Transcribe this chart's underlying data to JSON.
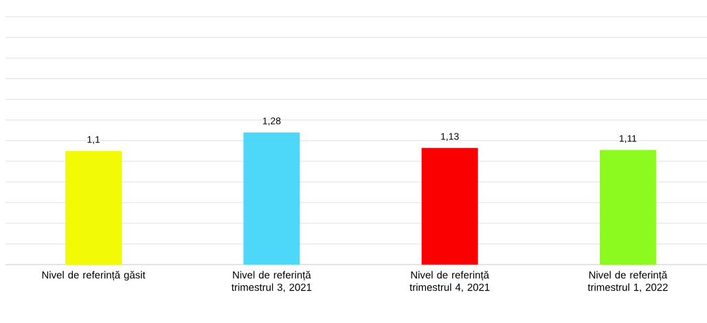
{
  "chart_data": {
    "type": "bar",
    "categories": [
      "Nivel de referință găsit",
      "Nivel de referință trimestrul 3, 2021",
      "Nivel de referință trimestrul 4, 2021",
      "Nivel de referință trimestrul 1, 2022"
    ],
    "values": [
      1.1,
      1.28,
      1.13,
      1.11
    ],
    "colors": [
      "#f2fa05",
      "#4dd8fa",
      "#fa0000",
      "#8cfa1e"
    ],
    "value_labels": [
      "1,1",
      "1,28",
      "1,13",
      "1,11"
    ],
    "grid": "y",
    "tick_labels": "x"
  }
}
